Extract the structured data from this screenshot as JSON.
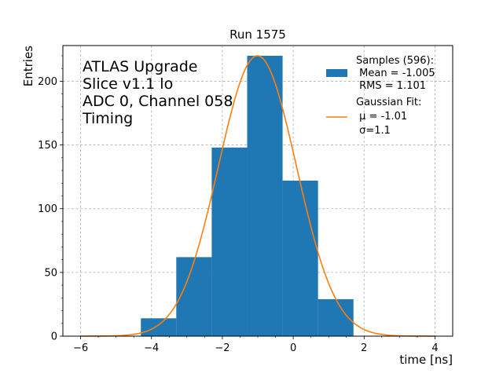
{
  "chart_data": {
    "type": "bar",
    "title": "Run 1575",
    "xlabel": "time [ns]",
    "ylabel": "Entries",
    "xlim": [
      -6.5,
      4.5
    ],
    "ylim": [
      0,
      228
    ],
    "xticks": [
      -6,
      -4,
      -2,
      0,
      2,
      4
    ],
    "yticks": [
      0,
      50,
      100,
      150,
      200
    ],
    "xtick_labels": [
      "−6",
      "−4",
      "−2",
      "0",
      "2",
      "4"
    ],
    "ytick_labels": [
      "0",
      "50",
      "100",
      "150",
      "200"
    ],
    "grid": true,
    "colors": {
      "histogram": "#1f77b4",
      "fit": "#ff7f0e",
      "grid": "#b0b0b0"
    },
    "annotation_lines": [
      "ATLAS Upgrade",
      "Slice v1.1 lo",
      "ADC 0, Channel 058",
      "Timing"
    ],
    "legend": {
      "position": "top-right",
      "entries": [
        {
          "type": "patch",
          "lines": [
            "Samples (596):",
            " Mean = -1.005",
            " RMS = 1.101"
          ]
        },
        {
          "type": "line",
          "lines": [
            "Gaussian Fit:",
            " μ = -1.01",
            " σ=1.1"
          ]
        }
      ]
    },
    "histogram": {
      "bins": [
        {
          "x0": -4.3,
          "x1": -3.3,
          "count": 14
        },
        {
          "x0": -3.3,
          "x1": -2.3,
          "count": 62
        },
        {
          "x0": -2.3,
          "x1": -1.3,
          "count": 148
        },
        {
          "x0": -1.3,
          "x1": -0.3,
          "count": 220
        },
        {
          "x0": -0.3,
          "x1": 0.7,
          "count": 122
        },
        {
          "x0": 0.7,
          "x1": 1.7,
          "count": 29
        }
      ]
    },
    "fit": {
      "type": "gaussian",
      "mu": -1.01,
      "sigma": 1.1,
      "amplitude": 220,
      "x_range": [
        -6,
        4
      ]
    }
  }
}
